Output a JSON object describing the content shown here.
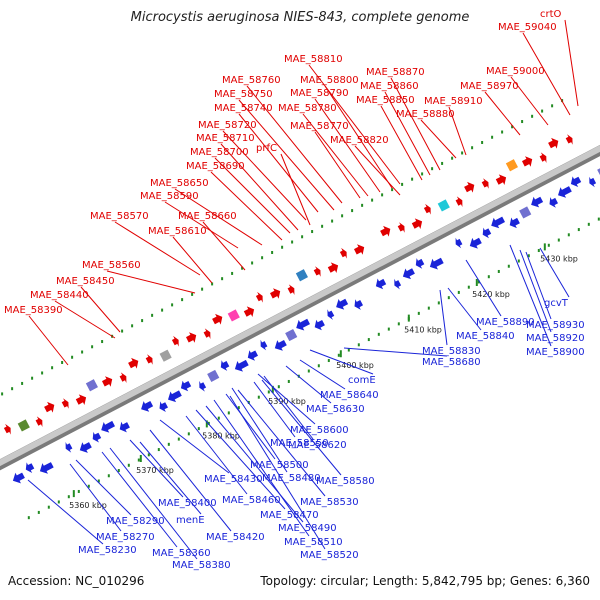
{
  "title": "Microcystis aeruginosa NIES-843, complete genome",
  "footer": {
    "accession": "Accession: NC_010296",
    "summary": "Topology: circular; Length: 5,842,795 bp; Genes: 6,360"
  },
  "ticks": [
    "5360 kbp",
    "5370 kbp",
    "5380 kbp",
    "5390 kbp",
    "5400 kbp",
    "5410 kbp",
    "5420 kbp",
    "5430 kbp"
  ],
  "labels_top": [
    "MAE_58390",
    "MAE_58440",
    "MAE_58450",
    "MAE_58560",
    "MAE_58610",
    "MAE_58570",
    "MAE_58660",
    "MAE_58590",
    "MAE_58650",
    "MAE_58690",
    "MAE_58700",
    "MAE_58710",
    "prfC",
    "MAE_58720",
    "MAE_58740",
    "MAE_58750",
    "MAE_58760",
    "MAE_58770",
    "MAE_58780",
    "MAE_58790",
    "MAE_58800",
    "MAE_58810",
    "MAE_58820",
    "MAE_58850",
    "MAE_58860",
    "MAE_58870",
    "MAE_58880",
    "MAE_58910",
    "MAE_58970",
    "MAE_59000",
    "MAE_59040",
    "crtO"
  ],
  "labels_bottom": [
    "MAE_58230",
    "MAE_58270",
    "MAE_58290",
    "MAE_58360",
    "MAE_58380",
    "menE",
    "MAE_58400",
    "MAE_58420",
    "MAE_58430",
    "MAE_58460",
    "MAE_58470",
    "MAE_58490",
    "MAE_58510",
    "MAE_58520",
    "MAE_58530",
    "MAE_58500",
    "MAE_58480",
    "MAE_58580",
    "MAE_58550",
    "MAE_58620",
    "MAE_58600",
    "MAE_58630",
    "MAE_58640",
    "comE",
    "MAE_58680",
    "MAE_58830",
    "MAE_58840",
    "MAE_58890",
    "MAE_58900",
    "MAE_58920",
    "MAE_58930",
    "gcvT"
  ],
  "colors": {
    "forward": "#e00000",
    "reverse": "#1a24d8",
    "backbone": "#999999",
    "tick": "#228b22"
  }
}
